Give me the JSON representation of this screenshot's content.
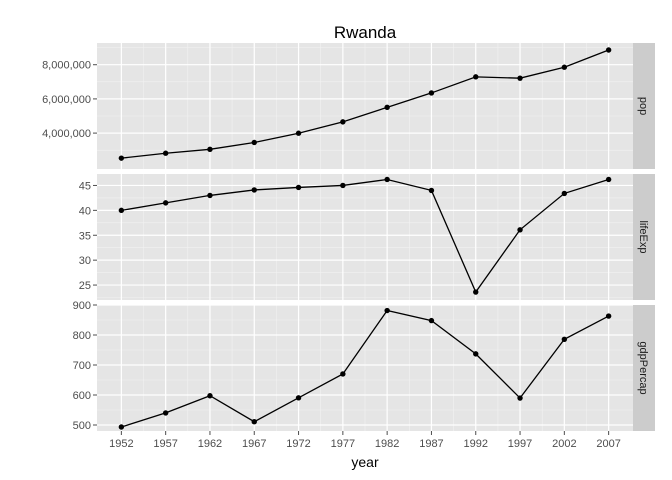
{
  "chart_data": {
    "type": "line",
    "title": "Rwanda",
    "xlabel": "year",
    "x": [
      1952,
      1957,
      1962,
      1967,
      1972,
      1977,
      1982,
      1987,
      1992,
      1997,
      2002,
      2007
    ],
    "xlim": [
      1949.25,
      2009.75
    ],
    "grid": true,
    "colors": {
      "panel_bg": "#e5e5e5",
      "grid_major": "#ffffff",
      "grid_minor": "#f2f2f2",
      "strip_bg": "#cccccc",
      "line": "#000000",
      "point": "#000000"
    },
    "series": [
      {
        "name": "pop",
        "values": [
          2534927,
          2822082,
          3051242,
          3451079,
          3992121,
          4657072,
          5507565,
          6349365,
          7290203,
          7212583,
          7852401,
          8860588
        ],
        "ylim": [
          1900000,
          9270000
        ],
        "yticks": [
          4000000,
          6000000,
          8000000
        ],
        "ytick_labels": [
          "4,000,000",
          "6,000,000",
          "8,000,000"
        ]
      },
      {
        "name": "lifeExp",
        "values": [
          40.0,
          41.5,
          43.0,
          44.1,
          44.6,
          45.0,
          46.2,
          44.0,
          23.6,
          36.1,
          43.4,
          46.2
        ],
        "ylim": [
          22.0,
          47.3
        ],
        "yticks": [
          25,
          30,
          35,
          40,
          45
        ],
        "ytick_labels": [
          "25",
          "30",
          "35",
          "40",
          "45"
        ]
      },
      {
        "name": "gdpPercap",
        "values": [
          493.3,
          540.3,
          597.5,
          510.96,
          590.6,
          670.1,
          881.6,
          848.0,
          737.1,
          589.9,
          785.7,
          863.1
        ],
        "ylim": [
          480,
          900
        ],
        "yticks": [
          500,
          600,
          700,
          800,
          900
        ],
        "ytick_labels": [
          "500",
          "600",
          "700",
          "800",
          "900"
        ]
      }
    ]
  }
}
